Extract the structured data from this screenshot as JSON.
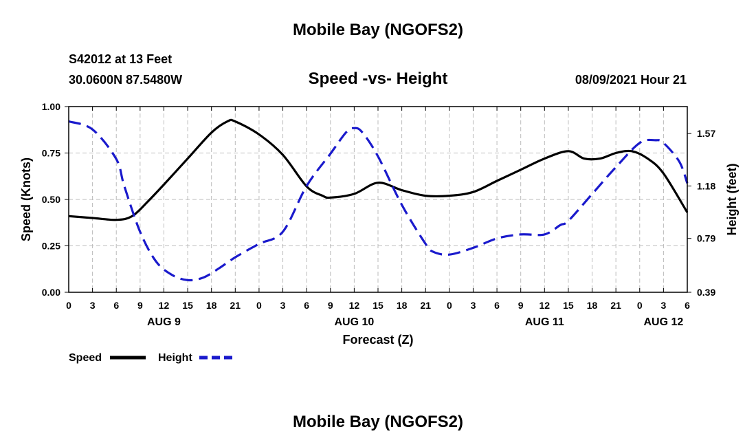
{
  "page": {
    "title_top": "Mobile Bay (NGOFS2)",
    "title_bottom": "Mobile Bay (NGOFS2)",
    "station": "S42012 at 13 Feet",
    "coords": "30.0600N  87.5480W",
    "subtitle": "Speed -vs- Height",
    "datetime": "08/09/2021 Hour 21"
  },
  "colors": {
    "speed": "#000000",
    "height": "#1a1acc",
    "grid": "#bbbbbb"
  },
  "chart_data": {
    "type": "line",
    "title": "Speed -vs- Height",
    "xlabel": "Forecast (Z)",
    "ylabel": "Speed (Knots)",
    "y2label": "Height (feet)",
    "x_range_hours": [
      0,
      78
    ],
    "ylim": [
      0,
      1.0
    ],
    "y2lim": [
      0.39,
      1.77
    ],
    "y_ticks": [
      "0.00",
      "0.25",
      "0.50",
      "0.75",
      "1.00"
    ],
    "y2_ticks": [
      "0.39",
      "0.79",
      "1.18",
      "1.57"
    ],
    "x_tick_labels": [
      "0",
      "3",
      "6",
      "9",
      "12",
      "15",
      "18",
      "21",
      "0",
      "3",
      "6",
      "9",
      "12",
      "15",
      "18",
      "21",
      "0",
      "3",
      "6",
      "9",
      "12",
      "15",
      "18",
      "21",
      "0",
      "3",
      "6"
    ],
    "date_labels": [
      {
        "label": "AUG 9",
        "hour": 12
      },
      {
        "label": "AUG 10",
        "hour": 36
      },
      {
        "label": "AUG 11",
        "hour": 60
      },
      {
        "label": "AUG 12",
        "hour": 75
      }
    ],
    "grid": true,
    "legend": [
      {
        "name": "Speed",
        "style": "solid"
      },
      {
        "name": "Height",
        "style": "dashed"
      }
    ],
    "series": [
      {
        "name": "Speed",
        "axis": "left",
        "hours": [
          0,
          3,
          6,
          8,
          10,
          12,
          15,
          18,
          20,
          21,
          24,
          27,
          30,
          32,
          33,
          36,
          39,
          42,
          45,
          48,
          51,
          54,
          57,
          60,
          63,
          65,
          67,
          69,
          71,
          73,
          75,
          78
        ],
        "values": [
          0.41,
          0.4,
          0.39,
          0.41,
          0.49,
          0.58,
          0.72,
          0.86,
          0.92,
          0.92,
          0.85,
          0.74,
          0.57,
          0.52,
          0.51,
          0.53,
          0.59,
          0.55,
          0.52,
          0.52,
          0.54,
          0.6,
          0.66,
          0.72,
          0.76,
          0.72,
          0.72,
          0.75,
          0.76,
          0.72,
          0.64,
          0.43
        ]
      },
      {
        "name": "Height",
        "axis": "right",
        "hours": [
          0,
          3,
          6,
          7,
          9,
          11,
          13,
          15,
          17,
          19,
          21,
          24,
          27,
          30,
          33,
          35,
          36,
          37,
          39,
          42,
          45,
          46,
          48,
          51,
          54,
          57,
          60,
          62,
          63,
          66,
          69,
          72,
          74,
          75,
          77,
          78
        ],
        "values": [
          1.66,
          1.6,
          1.38,
          1.18,
          0.84,
          0.62,
          0.52,
          0.48,
          0.5,
          0.57,
          0.65,
          0.75,
          0.84,
          1.18,
          1.42,
          1.58,
          1.61,
          1.58,
          1.4,
          1.04,
          0.75,
          0.69,
          0.67,
          0.72,
          0.79,
          0.82,
          0.82,
          0.89,
          0.92,
          1.12,
          1.32,
          1.5,
          1.52,
          1.5,
          1.36,
          1.2
        ]
      }
    ]
  }
}
